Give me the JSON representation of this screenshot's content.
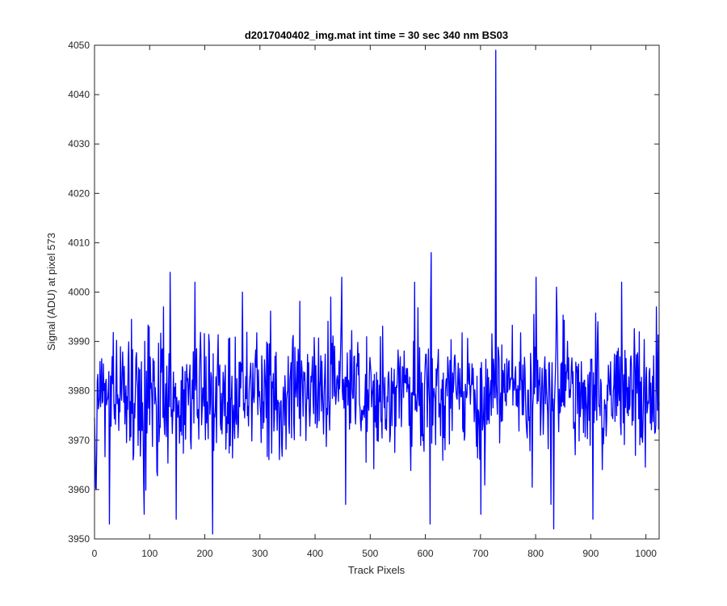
{
  "chart_data": {
    "type": "line",
    "title": "d2017040402_img.mat int time = 30 sec  340 nm BS03",
    "xlabel": "Track Pixels",
    "ylabel": "Signal (ADU) at pixel 573",
    "xlim": [
      0,
      1024
    ],
    "ylim": [
      3950,
      4050
    ],
    "xticks": [
      0,
      100,
      200,
      300,
      400,
      500,
      600,
      700,
      800,
      900,
      1000
    ],
    "yticks": [
      3950,
      3960,
      3970,
      3980,
      3990,
      4000,
      4010,
      4020,
      4030,
      4040,
      4050
    ],
    "grid": false,
    "series": [
      {
        "color": "#0000ff",
        "n_points": 1024,
        "baseline_mean": 3979.5,
        "noise_sd": 6.5,
        "noise_seed": 20170404,
        "peaks": [
          {
            "x": 3,
            "y": 3960
          },
          {
            "x": 27,
            "y": 3953
          },
          {
            "x": 90,
            "y": 3955
          },
          {
            "x": 99,
            "y": 3993
          },
          {
            "x": 125,
            "y": 3997
          },
          {
            "x": 137,
            "y": 4004
          },
          {
            "x": 148,
            "y": 3954
          },
          {
            "x": 182,
            "y": 4002
          },
          {
            "x": 214,
            "y": 3951
          },
          {
            "x": 268,
            "y": 4000
          },
          {
            "x": 448,
            "y": 4003
          },
          {
            "x": 455,
            "y": 3957
          },
          {
            "x": 580,
            "y": 4002
          },
          {
            "x": 608,
            "y": 3953
          },
          {
            "x": 610,
            "y": 4008
          },
          {
            "x": 700,
            "y": 3955
          },
          {
            "x": 727,
            "y": 4049
          },
          {
            "x": 800,
            "y": 4003
          },
          {
            "x": 827,
            "y": 3957
          },
          {
            "x": 832,
            "y": 3952
          },
          {
            "x": 837,
            "y": 4001
          },
          {
            "x": 903,
            "y": 3954
          },
          {
            "x": 955,
            "y": 4002
          },
          {
            "x": 1018,
            "y": 3997
          }
        ]
      }
    ]
  }
}
